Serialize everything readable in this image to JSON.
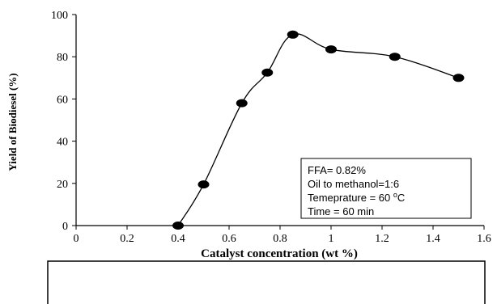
{
  "chart_data": {
    "type": "scatter",
    "xlabel": "Catalyst concentration (wt %)",
    "ylabel": "Yield of Biodiesel (%)",
    "xlim": [
      0,
      1.6
    ],
    "ylim": [
      0,
      100
    ],
    "x_ticks": [
      0,
      0.2,
      0.4,
      0.6,
      0.8,
      1,
      1.2,
      1.4,
      1.6
    ],
    "x_tick_labels": [
      "0",
      "0.2",
      "0.4",
      "0.6",
      "0.8",
      "1",
      "1.2",
      "1.4",
      "1.6"
    ],
    "y_ticks": [
      0,
      20,
      40,
      60,
      80,
      100
    ],
    "y_tick_labels": [
      "0",
      "20",
      "40",
      "60",
      "80",
      "100"
    ],
    "grid": false,
    "series": [
      {
        "x": [
          0.4,
          0.5,
          0.65,
          0.75,
          0.85,
          1.0,
          1.25,
          1.5
        ],
        "y": [
          0,
          19.5,
          58,
          72.5,
          90.5,
          83.5,
          80,
          70
        ],
        "marker": "circle",
        "color": "#000000",
        "trend_line": true
      }
    ],
    "annotation": {
      "placement": "lower-right",
      "lines": [
        {
          "text": "FFA= 0.82%",
          "sup": ""
        },
        {
          "text": "Oil to methanol=1:6",
          "sup": ""
        },
        {
          "text": "Temeprature = 60 ",
          "sup": "o",
          "suffix": "C"
        },
        {
          "text": "Time = 60 min",
          "sup": ""
        }
      ]
    }
  }
}
